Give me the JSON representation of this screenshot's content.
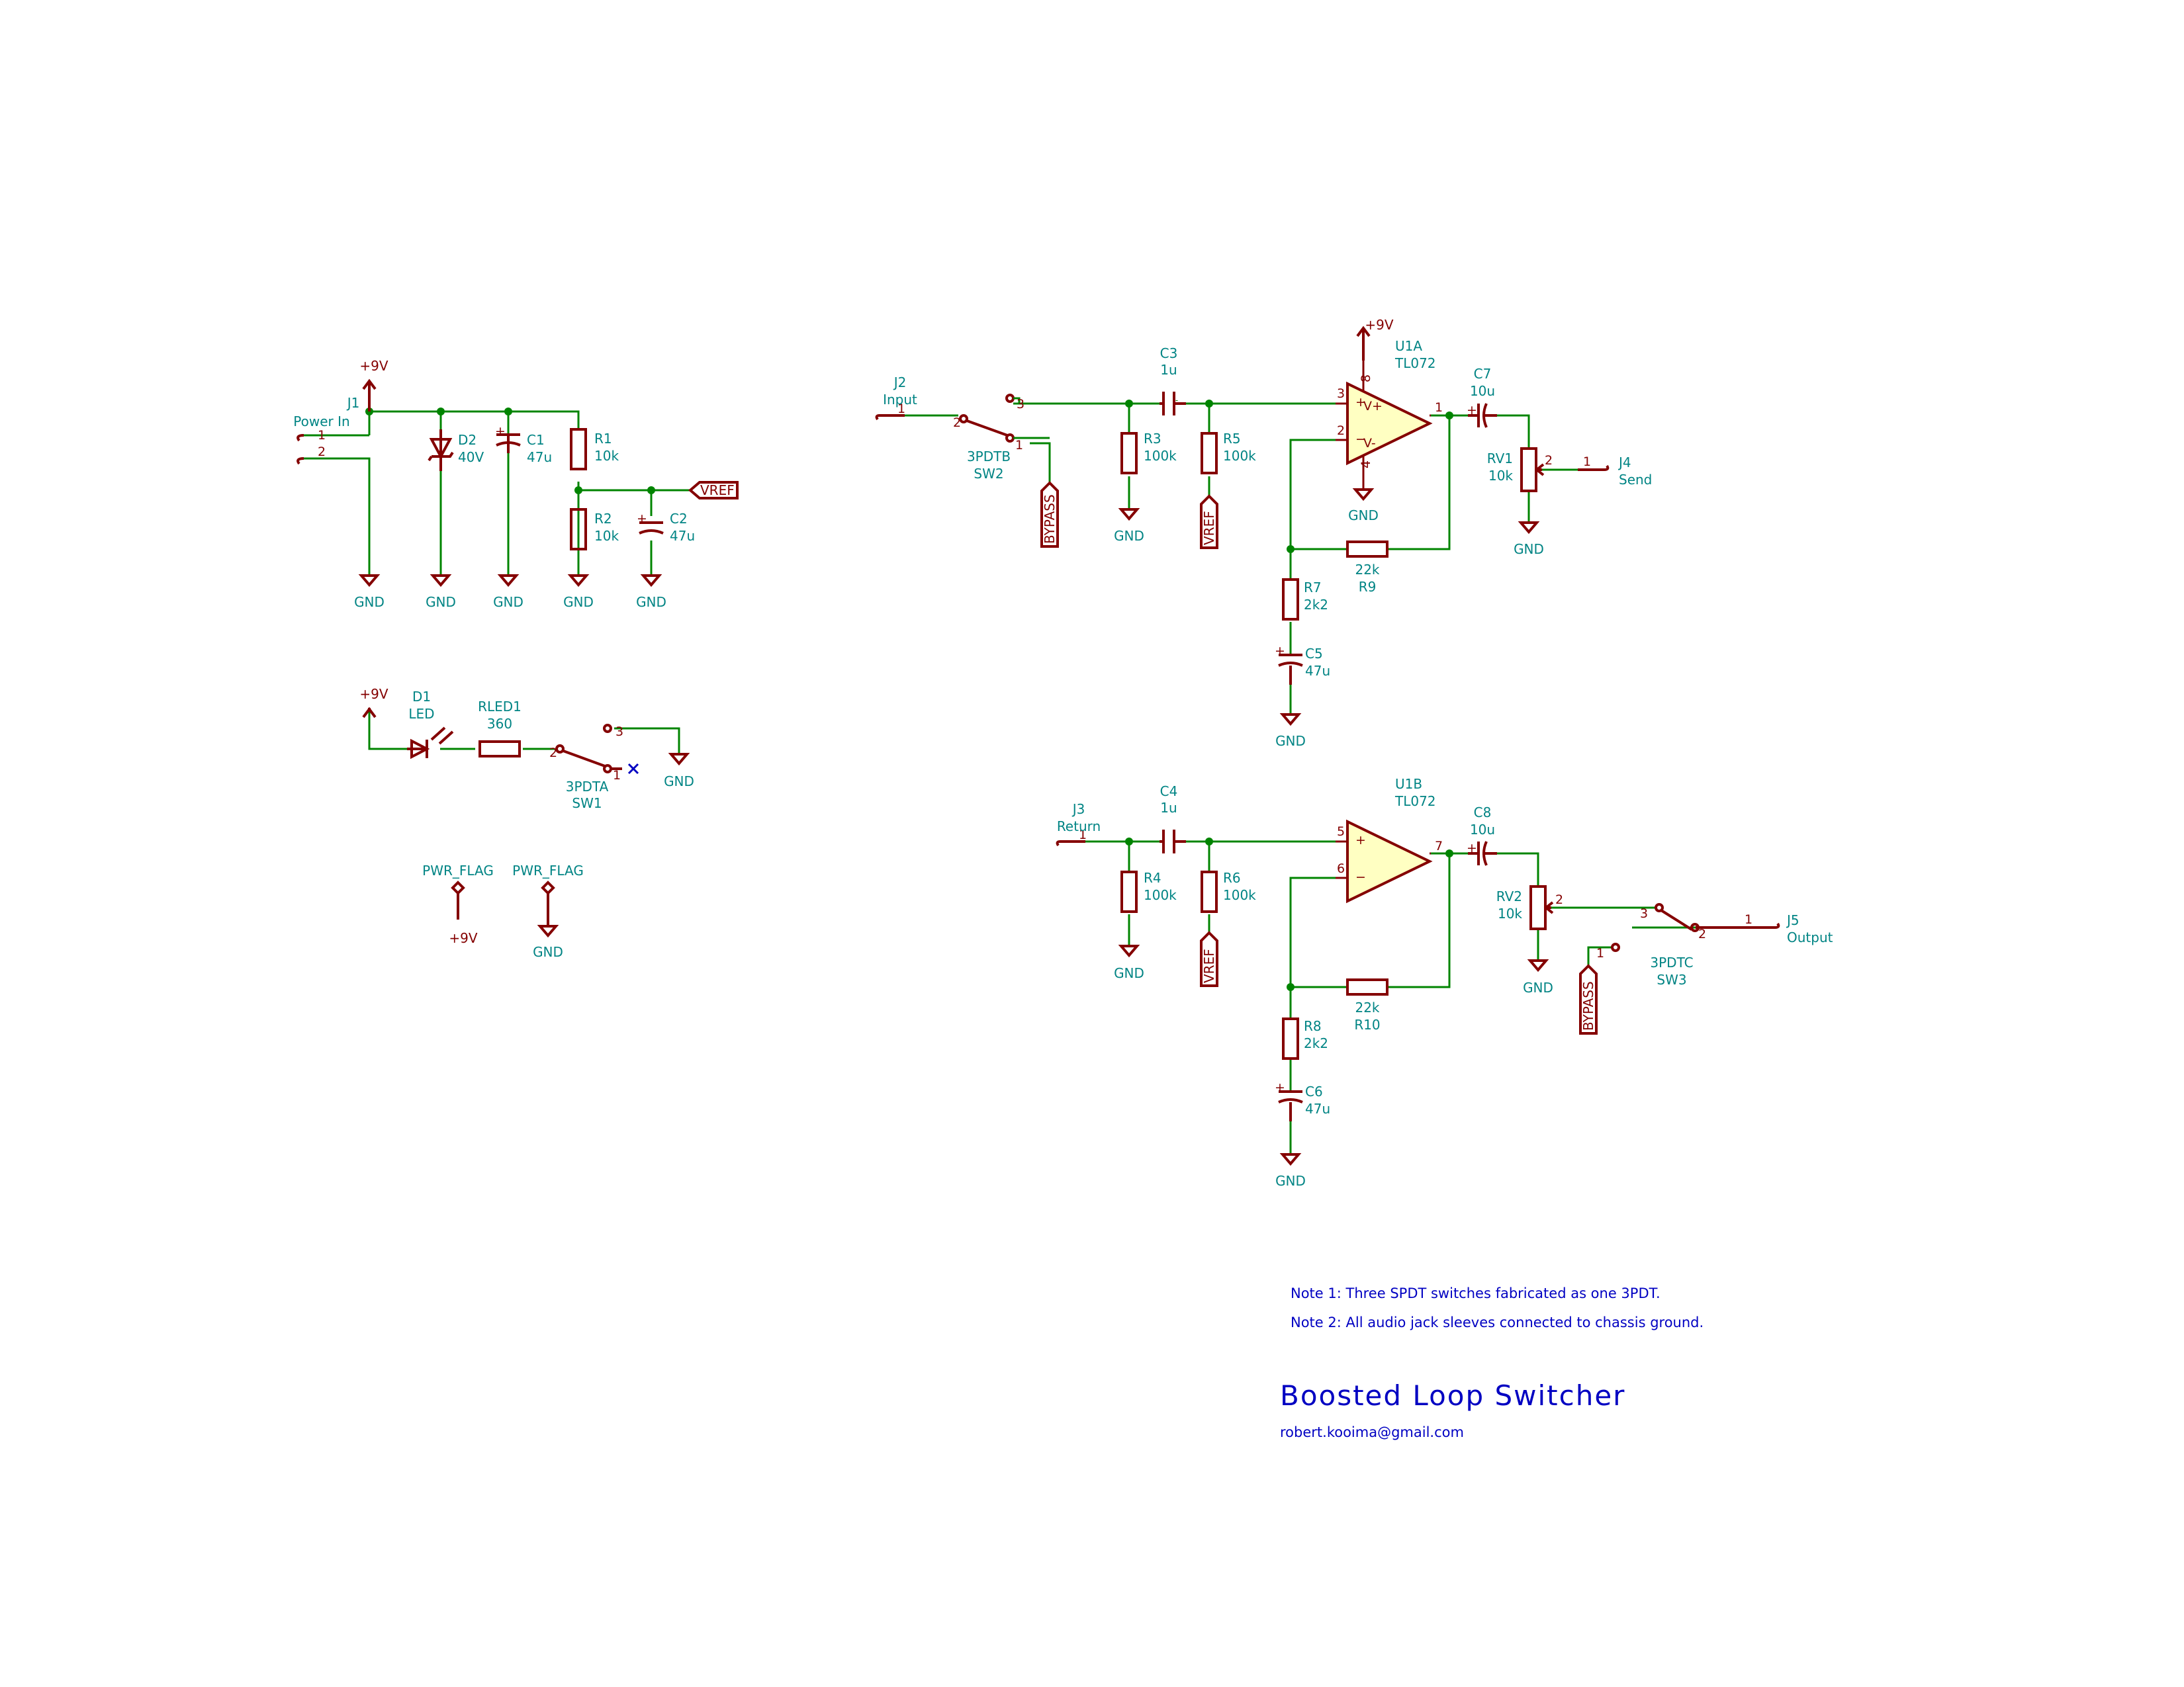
{
  "schematic": {
    "title": "Boosted Loop Switcher",
    "author": "robert.kooima@gmail.com",
    "notes": [
      "Note 1: Three SPDT switches fabricated as one 3PDT.",
      "Note 2: All audio jack sleeves connected to chassis ground."
    ],
    "nets": {
      "pos": "+9V",
      "gnd": "GND",
      "vref": "VREF",
      "bypass": "BYPASS",
      "pwr_flag": "PWR_FLAG"
    },
    "components": {
      "J1": {
        "ref": "J1",
        "value": "Power In"
      },
      "J2": {
        "ref": "J2",
        "value": "Input"
      },
      "J3": {
        "ref": "J3",
        "value": "Return"
      },
      "J4": {
        "ref": "J4",
        "value": "Send"
      },
      "J5": {
        "ref": "J5",
        "value": "Output"
      },
      "D1": {
        "ref": "D1",
        "value": "LED"
      },
      "D2": {
        "ref": "D2",
        "value": "40V"
      },
      "RLED1": {
        "ref": "RLED1",
        "value": "360"
      },
      "SW1": {
        "ref": "SW1",
        "value": "3PDTA"
      },
      "SW2": {
        "ref": "SW2",
        "value": "3PDTB"
      },
      "SW3": {
        "ref": "SW3",
        "value": "3PDTC"
      },
      "R1": {
        "ref": "R1",
        "value": "10k"
      },
      "R2": {
        "ref": "R2",
        "value": "10k"
      },
      "R3": {
        "ref": "R3",
        "value": "100k"
      },
      "R4": {
        "ref": "R4",
        "value": "100k"
      },
      "R5": {
        "ref": "R5",
        "value": "100k"
      },
      "R6": {
        "ref": "R6",
        "value": "100k"
      },
      "R7": {
        "ref": "R7",
        "value": "2k2"
      },
      "R8": {
        "ref": "R8",
        "value": "2k2"
      },
      "R9": {
        "ref": "R9",
        "value": "22k"
      },
      "R10": {
        "ref": "R10",
        "value": "22k"
      },
      "C1": {
        "ref": "C1",
        "value": "47u"
      },
      "C2": {
        "ref": "C2",
        "value": "47u"
      },
      "C3": {
        "ref": "C3",
        "value": "1u"
      },
      "C4": {
        "ref": "C4",
        "value": "1u"
      },
      "C5": {
        "ref": "C5",
        "value": "47u"
      },
      "C6": {
        "ref": "C6",
        "value": "47u"
      },
      "C7": {
        "ref": "C7",
        "value": "10u"
      },
      "C8": {
        "ref": "C8",
        "value": "10u"
      },
      "U1A": {
        "ref": "U1A",
        "value": "TL072"
      },
      "U1B": {
        "ref": "U1B",
        "value": "TL072"
      },
      "RV1": {
        "ref": "RV1",
        "value": "10k"
      },
      "RV2": {
        "ref": "RV2",
        "value": "10k"
      }
    },
    "pins": {
      "p1": "1",
      "p2": "2",
      "p3": "3",
      "p4": "4",
      "p5": "5",
      "p6": "6",
      "p7": "7",
      "p8": "8",
      "vplus": "V+",
      "vminus": "V-",
      "plus": "+",
      "minus": "−"
    }
  },
  "colors": {
    "wire": "#008400",
    "component": "#840000",
    "component_fill": "#ffffc2",
    "reference": "#008484",
    "annotation": "#0000c2"
  }
}
